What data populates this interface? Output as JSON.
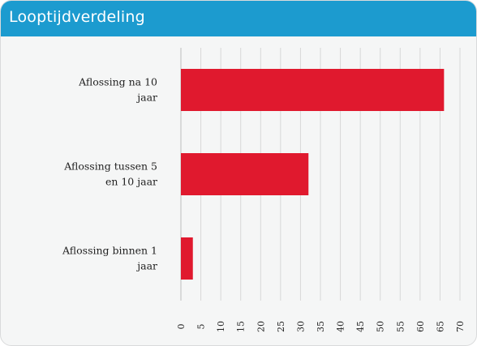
{
  "header": {
    "title": "Looptijdverdeling"
  },
  "colors": {
    "accent": "#1c9bcf",
    "bar": "#e0192e",
    "grid": "#d8d8d8"
  },
  "chart_data": {
    "type": "bar",
    "orientation": "horizontal",
    "title": "Looptijdverdeling",
    "xlabel": "",
    "ylabel": "",
    "categories": [
      {
        "lines": [
          "Aflossing na 10",
          "jaar"
        ]
      },
      {
        "lines": [
          "Aflossing tussen 5",
          "en 10 jaar"
        ]
      },
      {
        "lines": [
          "Aflossing binnen 1",
          "jaar"
        ]
      }
    ],
    "values": [
      66,
      32,
      3
    ],
    "xlim": [
      0,
      70
    ],
    "xticks": [
      "0",
      "5",
      "10",
      "15",
      "20",
      "25",
      "30",
      "35",
      "40",
      "45",
      "50",
      "55",
      "60",
      "65",
      "70"
    ],
    "grid": true
  }
}
